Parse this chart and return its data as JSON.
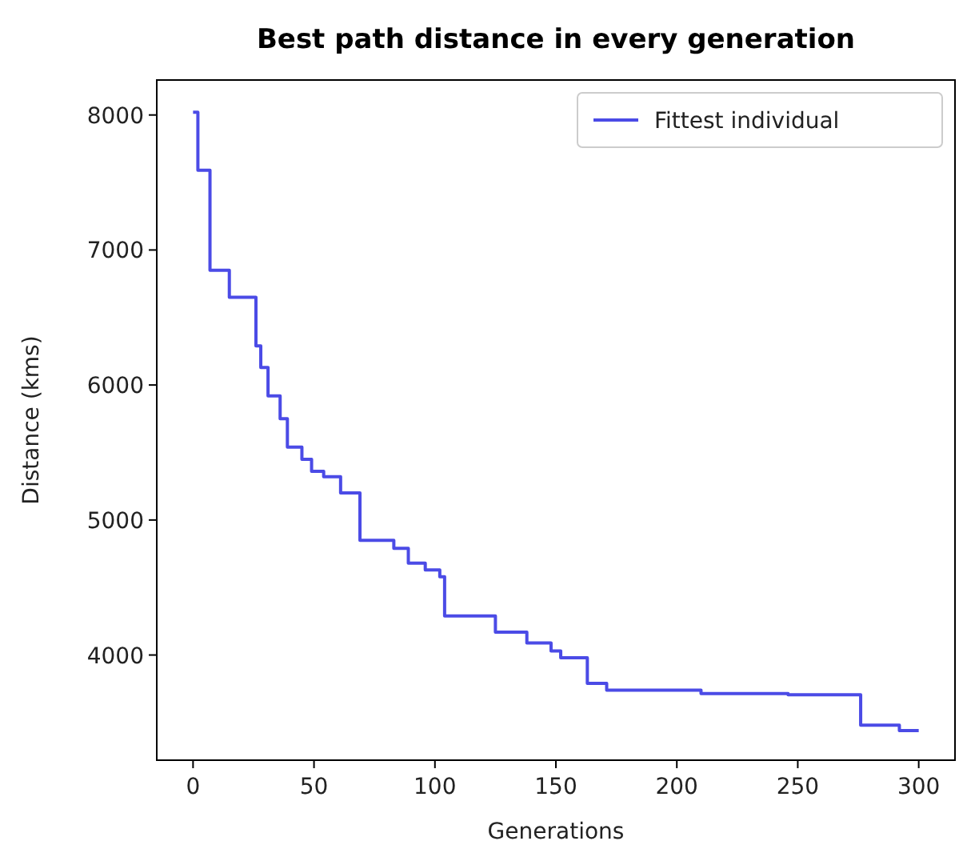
{
  "chart_data": {
    "type": "step",
    "title": "Best path distance in every generation",
    "xlabel": "Generations",
    "ylabel": "Distance (kms)",
    "xlim": [
      -15,
      315
    ],
    "xticks": [
      0,
      50,
      100,
      150,
      200,
      250,
      300
    ],
    "ylim": [
      3221,
      8259
    ],
    "yticks": [
      4000,
      5000,
      6000,
      7000,
      8000
    ],
    "grid": false,
    "legend": "top right",
    "series": [
      {
        "name": "Fittest individual",
        "color": "#4b4be6",
        "x": [
          0,
          2,
          7,
          15,
          26,
          28,
          31,
          36,
          39,
          45,
          49,
          54,
          61,
          69,
          83,
          89,
          96,
          102,
          104,
          125,
          138,
          148,
          152,
          163,
          171,
          210,
          246,
          276,
          292,
          300
        ],
        "values": [
          8020,
          7590,
          6850,
          6650,
          6290,
          6130,
          5920,
          5750,
          5540,
          5450,
          5360,
          5320,
          5200,
          4850,
          4790,
          4680,
          4630,
          4580,
          4290,
          4170,
          4090,
          4030,
          3980,
          3790,
          3740,
          3715,
          3705,
          3480,
          3440,
          3440
        ]
      }
    ]
  }
}
